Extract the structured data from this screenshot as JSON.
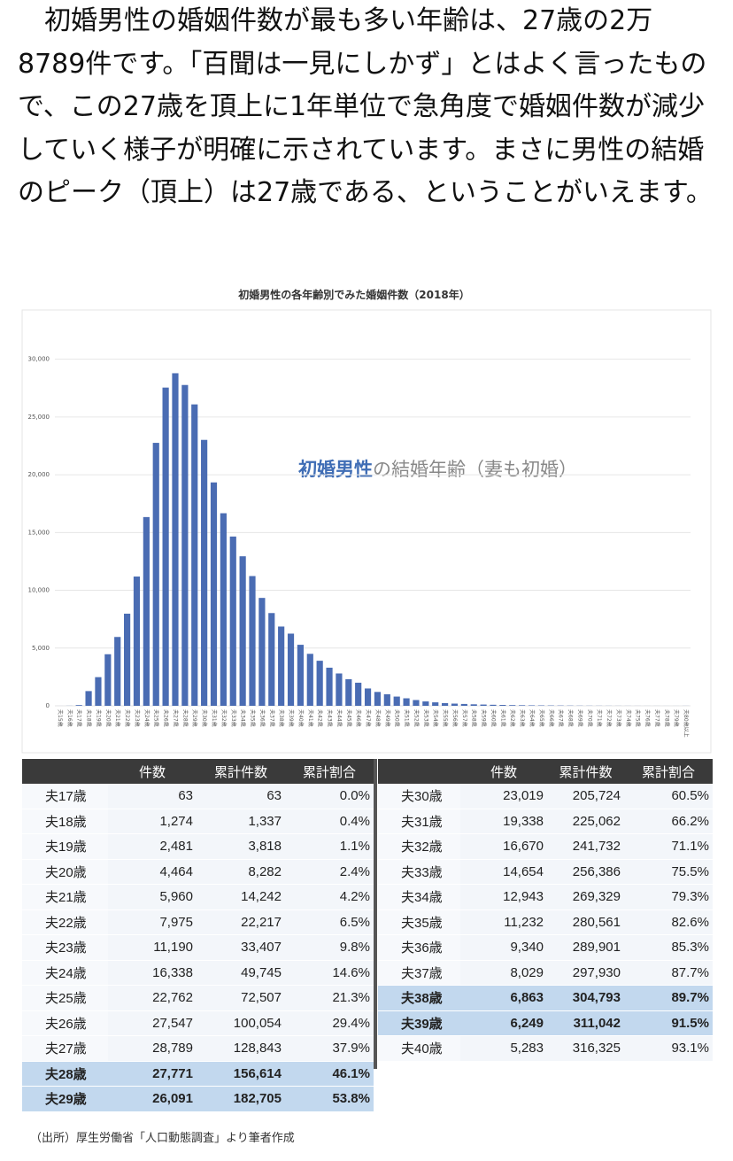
{
  "article": {
    "paragraph": "　初婚男性の婚姻件数が最も多い年齢は、27歳の2万8789件です。「百聞は一見にしかず」とはよく言ったもので、この27歳を頂上に1年単位で急角度で婚姻件数が減少していく様子が明確に示されています。まさに男性の結婚のピーク（頂上）は27歳である、ということがいえます。"
  },
  "chart_data": {
    "type": "bar",
    "title": "初婚男性の各年齢別でみた婚姻件数（2018年）",
    "annotation_emphasis": "初婚男性",
    "annotation": "の結婚年齢（妻も初婚）",
    "categories": [
      "夫15歳",
      "夫16歳",
      "夫17歳",
      "夫18歳",
      "夫19歳",
      "夫20歳",
      "夫21歳",
      "夫22歳",
      "夫23歳",
      "夫24歳",
      "夫25歳",
      "夫26歳",
      "夫27歳",
      "夫28歳",
      "夫29歳",
      "夫30歳",
      "夫31歳",
      "夫32歳",
      "夫33歳",
      "夫34歳",
      "夫35歳",
      "夫36歳",
      "夫37歳",
      "夫38歳",
      "夫39歳",
      "夫40歳",
      "夫41歳",
      "夫42歳",
      "夫43歳",
      "夫44歳",
      "夫45歳",
      "夫46歳",
      "夫47歳",
      "夫48歳",
      "夫49歳",
      "夫50歳",
      "夫51歳",
      "夫52歳",
      "夫53歳",
      "夫54歳",
      "夫55歳",
      "夫56歳",
      "夫57歳",
      "夫58歳",
      "夫59歳",
      "夫60歳",
      "夫61歳",
      "夫62歳",
      "夫63歳",
      "夫64歳",
      "夫65歳",
      "夫66歳",
      "夫67歳",
      "夫68歳",
      "夫69歳",
      "夫70歳",
      "夫71歳",
      "夫72歳",
      "夫73歳",
      "夫74歳",
      "夫75歳",
      "夫76歳",
      "夫77歳",
      "夫78歳",
      "夫79歳",
      "夫80歳以上"
    ],
    "values": [
      1,
      8,
      63,
      1274,
      2481,
      4464,
      5960,
      7975,
      11190,
      16338,
      22762,
      27547,
      28789,
      27771,
      26091,
      23019,
      19338,
      16670,
      14654,
      12943,
      11232,
      9340,
      8029,
      6863,
      6249,
      5283,
      4500,
      3900,
      3300,
      2800,
      2300,
      2000,
      1500,
      1200,
      1000,
      800,
      650,
      500,
      380,
      300,
      230,
      190,
      160,
      130,
      110,
      90,
      75,
      60,
      50,
      40,
      35,
      30,
      25,
      20,
      15,
      12,
      10,
      8,
      6,
      5,
      4,
      3,
      3,
      2,
      2,
      5
    ],
    "color": "#4a6cb3",
    "ylim": [
      0,
      31200
    ],
    "yticks": [
      0,
      {
        "value": 5000,
        "label": "5,000"
      },
      {
        "value": 10000,
        "label": "10,000"
      },
      {
        "value": 15000,
        "label": "15,000"
      },
      {
        "value": 20000,
        "label": "20,000"
      },
      {
        "value": 25000,
        "label": "25,000"
      },
      {
        "value": 30000,
        "label": "30,000"
      }
    ],
    "grid": true
  },
  "table": {
    "left": {
      "header": [
        "件数",
        "累計件数",
        "累計割合"
      ],
      "rows": [
        {
          "cells": [
            "夫17歳",
            "63",
            "63",
            "0.0%"
          ],
          "highlight": false
        },
        {
          "cells": [
            "夫18歳",
            "1,274",
            "1,337",
            "0.4%"
          ],
          "highlight": false
        },
        {
          "cells": [
            "夫19歳",
            "2,481",
            "3,818",
            "1.1%"
          ],
          "highlight": false
        },
        {
          "cells": [
            "夫20歳",
            "4,464",
            "8,282",
            "2.4%"
          ],
          "highlight": false
        },
        {
          "cells": [
            "夫21歳",
            "5,960",
            "14,242",
            "4.2%"
          ],
          "highlight": false
        },
        {
          "cells": [
            "夫22歳",
            "7,975",
            "22,217",
            "6.5%"
          ],
          "highlight": false
        },
        {
          "cells": [
            "夫23歳",
            "11,190",
            "33,407",
            "9.8%"
          ],
          "highlight": false
        },
        {
          "cells": [
            "夫24歳",
            "16,338",
            "49,745",
            "14.6%"
          ],
          "highlight": false
        },
        {
          "cells": [
            "夫25歳",
            "22,762",
            "72,507",
            "21.3%"
          ],
          "highlight": false
        },
        {
          "cells": [
            "夫26歳",
            "27,547",
            "100,054",
            "29.4%"
          ],
          "highlight": false
        },
        {
          "cells": [
            "夫27歳",
            "28,789",
            "128,843",
            "37.9%"
          ],
          "highlight": false
        },
        {
          "cells": [
            "夫28歳",
            "27,771",
            "156,614",
            "46.1%"
          ],
          "highlight": true
        },
        {
          "cells": [
            "夫29歳",
            "26,091",
            "182,705",
            "53.8%"
          ],
          "highlight": true
        }
      ]
    },
    "right": {
      "header": [
        "件数",
        "累計件数",
        "累計割合"
      ],
      "rows": [
        {
          "cells": [
            "夫30歳",
            "23,019",
            "205,724",
            "60.5%"
          ],
          "highlight": false
        },
        {
          "cells": [
            "夫31歳",
            "19,338",
            "225,062",
            "66.2%"
          ],
          "highlight": false
        },
        {
          "cells": [
            "夫32歳",
            "16,670",
            "241,732",
            "71.1%"
          ],
          "highlight": false
        },
        {
          "cells": [
            "夫33歳",
            "14,654",
            "256,386",
            "75.5%"
          ],
          "highlight": false
        },
        {
          "cells": [
            "夫34歳",
            "12,943",
            "269,329",
            "79.3%"
          ],
          "highlight": false
        },
        {
          "cells": [
            "夫35歳",
            "11,232",
            "280,561",
            "82.6%"
          ],
          "highlight": false
        },
        {
          "cells": [
            "夫36歳",
            "9,340",
            "289,901",
            "85.3%"
          ],
          "highlight": false
        },
        {
          "cells": [
            "夫37歳",
            "8,029",
            "297,930",
            "87.7%"
          ],
          "highlight": false
        },
        {
          "cells": [
            "夫38歳",
            "6,863",
            "304,793",
            "89.7%"
          ],
          "highlight": true
        },
        {
          "cells": [
            "夫39歳",
            "6,249",
            "311,042",
            "91.5%"
          ],
          "highlight": true
        },
        {
          "cells": [
            "夫40歳",
            "5,283",
            "316,325",
            "93.1%"
          ],
          "highlight": false
        }
      ]
    },
    "source": "（出所）厚生労働省「人口動態調査」より筆者作成"
  }
}
